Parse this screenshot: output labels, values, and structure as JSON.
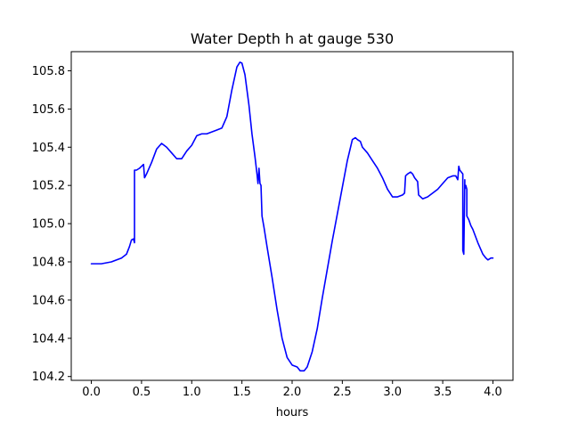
{
  "chart_data": {
    "type": "line",
    "title": "Water Depth h at gauge 530",
    "xlabel": "hours",
    "ylabel": "",
    "xlim": [
      -0.2,
      4.2
    ],
    "ylim": [
      104.18,
      105.9
    ],
    "grid": false,
    "xticks": [
      0.0,
      0.5,
      1.0,
      1.5,
      2.0,
      2.5,
      3.0,
      3.5,
      4.0
    ],
    "xtick_labels": [
      "0.0",
      "0.5",
      "1.0",
      "1.5",
      "2.0",
      "2.5",
      "3.0",
      "3.5",
      "4.0"
    ],
    "yticks": [
      104.2,
      104.4,
      104.6,
      104.8,
      105.0,
      105.2,
      105.4,
      105.6,
      105.8
    ],
    "ytick_labels": [
      "104.2",
      "104.4",
      "104.6",
      "104.8",
      "105.0",
      "105.2",
      "105.4",
      "105.6",
      "105.8"
    ],
    "series": [
      {
        "color": "#0000ff",
        "x": [
          0.0,
          0.1,
          0.2,
          0.3,
          0.35,
          0.38,
          0.4,
          0.42,
          0.43,
          0.43,
          0.45,
          0.48,
          0.5,
          0.52,
          0.53,
          0.55,
          0.6,
          0.65,
          0.7,
          0.75,
          0.8,
          0.85,
          0.9,
          0.95,
          1.0,
          1.05,
          1.1,
          1.15,
          1.2,
          1.25,
          1.3,
          1.35,
          1.4,
          1.45,
          1.48,
          1.5,
          1.53,
          1.57,
          1.6,
          1.63,
          1.65,
          1.66,
          1.67,
          1.68,
          1.69,
          1.7,
          1.72,
          1.75,
          1.8,
          1.85,
          1.9,
          1.95,
          2.0,
          2.05,
          2.08,
          2.1,
          2.12,
          2.15,
          2.2,
          2.25,
          2.3,
          2.35,
          2.4,
          2.45,
          2.5,
          2.55,
          2.6,
          2.63,
          2.65,
          2.68,
          2.7,
          2.75,
          2.8,
          2.85,
          2.9,
          2.95,
          3.0,
          3.05,
          3.1,
          3.12,
          3.13,
          3.15,
          3.18,
          3.2,
          3.22,
          3.25,
          3.26,
          3.28,
          3.3,
          3.35,
          3.4,
          3.45,
          3.5,
          3.55,
          3.6,
          3.63,
          3.65,
          3.66,
          3.67,
          3.7,
          3.7,
          3.71,
          3.72,
          3.72,
          3.73,
          3.74,
          3.74,
          3.76,
          3.78,
          3.8,
          3.85,
          3.9,
          3.93,
          3.95,
          3.98,
          4.0
        ],
        "y": [
          104.79,
          104.79,
          104.8,
          104.82,
          104.84,
          104.88,
          104.915,
          104.92,
          104.9,
          105.28,
          105.28,
          105.29,
          105.3,
          105.31,
          105.24,
          105.26,
          105.32,
          105.39,
          105.42,
          105.4,
          105.37,
          105.34,
          105.34,
          105.38,
          105.41,
          105.46,
          105.47,
          105.47,
          105.48,
          105.49,
          105.5,
          105.56,
          105.7,
          105.82,
          105.845,
          105.84,
          105.78,
          105.62,
          105.47,
          105.35,
          105.26,
          105.21,
          105.29,
          105.21,
          105.2,
          105.04,
          104.98,
          104.88,
          104.72,
          104.55,
          104.4,
          104.3,
          104.26,
          104.25,
          104.23,
          104.23,
          104.23,
          104.25,
          104.33,
          104.45,
          104.61,
          104.76,
          104.91,
          105.05,
          105.19,
          105.33,
          105.44,
          105.45,
          105.44,
          105.43,
          105.4,
          105.37,
          105.33,
          105.29,
          105.24,
          105.18,
          105.14,
          105.14,
          105.15,
          105.16,
          105.25,
          105.26,
          105.27,
          105.26,
          105.24,
          105.22,
          105.15,
          105.14,
          105.13,
          105.14,
          105.16,
          105.18,
          105.21,
          105.24,
          105.25,
          105.25,
          105.23,
          105.3,
          105.28,
          105.26,
          104.86,
          104.84,
          105.23,
          105.18,
          105.2,
          105.18,
          105.04,
          105.02,
          104.99,
          104.97,
          104.9,
          104.84,
          104.82,
          104.81,
          104.82,
          104.82
        ]
      }
    ]
  }
}
